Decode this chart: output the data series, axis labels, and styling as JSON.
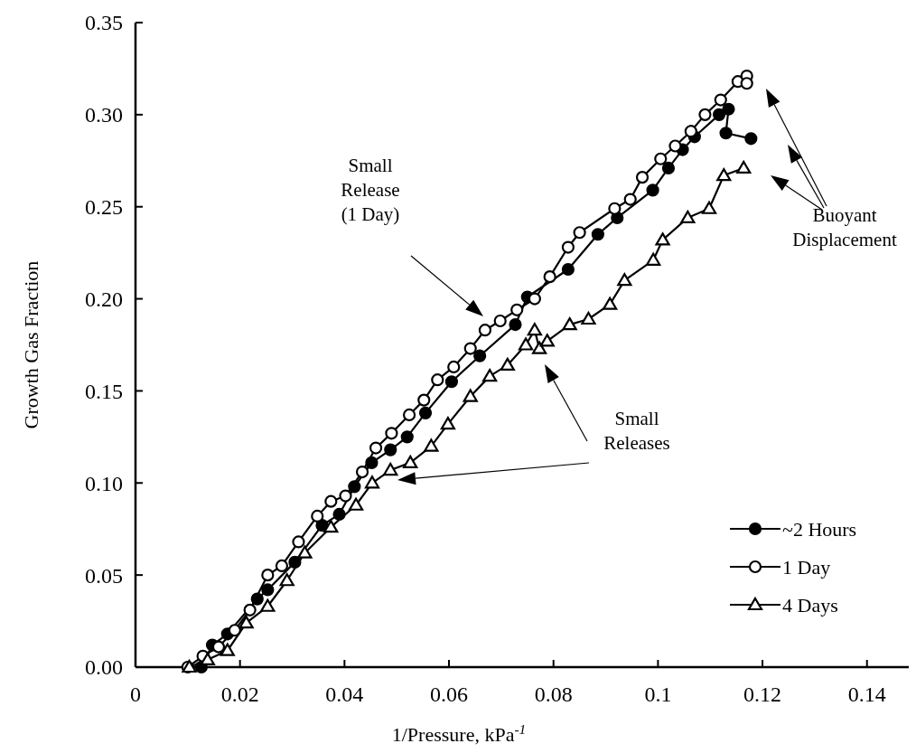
{
  "chart_data": {
    "type": "line",
    "xlabel": "1/Pressure, kPa$^{-1}$",
    "ylabel": "Growth Gas Fraction",
    "xlim": [
      0,
      0.148
    ],
    "ylim": [
      0,
      0.35
    ],
    "xticks": [
      0,
      0.02,
      0.04,
      0.06,
      0.08,
      0.1,
      0.12,
      0.14
    ],
    "yticks": [
      {
        "value": 0,
        "label": "0.00"
      },
      {
        "value": 0.05,
        "label": "0.05"
      },
      {
        "value": 0.1,
        "label": "0.10"
      },
      {
        "value": 0.15,
        "label": "0.15"
      },
      {
        "value": 0.2,
        "label": "0.20"
      },
      {
        "value": 0.25,
        "label": "0.25"
      },
      {
        "value": 0.3,
        "label": "0.30"
      },
      {
        "value": 0.35,
        "label": "0.35"
      }
    ],
    "grid": false,
    "legend": "bottom right",
    "line_style": "solid",
    "series": [
      {
        "name": "~2 Hours",
        "color": "#000000",
        "marker": "circle",
        "x": [
          0.0126,
          0.0147,
          0.0176,
          0.0233,
          0.0253,
          0.0305,
          0.0357,
          0.039,
          0.0419,
          0.0452,
          0.0488,
          0.052,
          0.0555,
          0.0605,
          0.0659,
          0.0727,
          0.075,
          0.0828,
          0.0885,
          0.0922,
          0.099,
          0.102,
          0.1047,
          0.107,
          0.1117,
          0.1135,
          0.113,
          0.1178
        ],
        "values": [
          0.0,
          0.012,
          0.018,
          0.037,
          0.042,
          0.057,
          0.077,
          0.083,
          0.098,
          0.111,
          0.118,
          0.125,
          0.138,
          0.155,
          0.169,
          0.186,
          0.201,
          0.216,
          0.235,
          0.244,
          0.259,
          0.271,
          0.281,
          0.288,
          0.3,
          0.303,
          0.29,
          0.287
        ]
      },
      {
        "name": "1 Day",
        "color": "#ffffff",
        "marker": "circle",
        "x": [
          0.01,
          0.0129,
          0.0159,
          0.019,
          0.0219,
          0.0253,
          0.028,
          0.0312,
          0.0348,
          0.0374,
          0.0402,
          0.0434,
          0.046,
          0.049,
          0.0524,
          0.0552,
          0.0578,
          0.0609,
          0.0641,
          0.0669,
          0.0698,
          0.073,
          0.0764,
          0.0793,
          0.0828,
          0.085,
          0.0917,
          0.0947,
          0.097,
          0.1005,
          0.1033,
          0.1063,
          0.109,
          0.112,
          0.1153,
          0.117,
          0.117
        ],
        "values": [
          0.0,
          0.006,
          0.011,
          0.02,
          0.031,
          0.05,
          0.055,
          0.068,
          0.082,
          0.09,
          0.093,
          0.106,
          0.119,
          0.127,
          0.137,
          0.145,
          0.156,
          0.163,
          0.173,
          0.183,
          0.188,
          0.194,
          0.2,
          0.212,
          0.228,
          0.236,
          0.249,
          0.254,
          0.266,
          0.276,
          0.283,
          0.291,
          0.3,
          0.308,
          0.318,
          0.321,
          0.317
        ]
      },
      {
        "name": "4 Days",
        "color": "#ffffff",
        "marker": "triangle",
        "x": [
          0.0103,
          0.0138,
          0.0176,
          0.0212,
          0.0253,
          0.029,
          0.0324,
          0.0374,
          0.0422,
          0.0453,
          0.0488,
          0.0526,
          0.0566,
          0.0598,
          0.0641,
          0.0678,
          0.0712,
          0.0747,
          0.0764,
          0.0773,
          0.0788,
          0.0831,
          0.0867,
          0.0908,
          0.0936,
          0.0991,
          0.1009,
          0.1057,
          0.1098,
          0.1126,
          0.1164
        ],
        "values": [
          0.0,
          0.004,
          0.009,
          0.024,
          0.033,
          0.047,
          0.062,
          0.076,
          0.088,
          0.1,
          0.107,
          0.111,
          0.12,
          0.132,
          0.147,
          0.158,
          0.164,
          0.175,
          0.183,
          0.173,
          0.177,
          0.186,
          0.189,
          0.197,
          0.21,
          0.221,
          0.232,
          0.244,
          0.249,
          0.267,
          0.271
        ]
      }
    ],
    "annotations": [
      "Small Release (1 Day)",
      "Small Releases",
      "Buoyant Displacement"
    ]
  }
}
